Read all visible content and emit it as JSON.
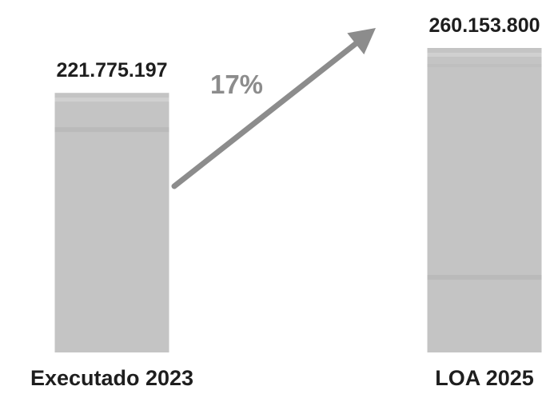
{
  "chart_data": {
    "type": "bar",
    "categories": [
      "Executado 2023",
      "LOA 2025"
    ],
    "values": [
      221775197,
      260153800
    ],
    "value_labels": [
      "221.775.197",
      "260.153.800"
    ],
    "ylim": [
      0,
      260153800
    ],
    "grid": false,
    "legend": "none",
    "annotations": [
      {
        "type": "arrow",
        "label": "17%",
        "from_category": "Executado 2023",
        "to_category": "LOA 2025"
      }
    ],
    "colors": {
      "bar": "#c4c4c4",
      "arrow": "#8c8c8c",
      "annotation_text": "#8c8c8c",
      "value_text": "#1e1e1e",
      "category_text": "#1e1e1e"
    }
  }
}
